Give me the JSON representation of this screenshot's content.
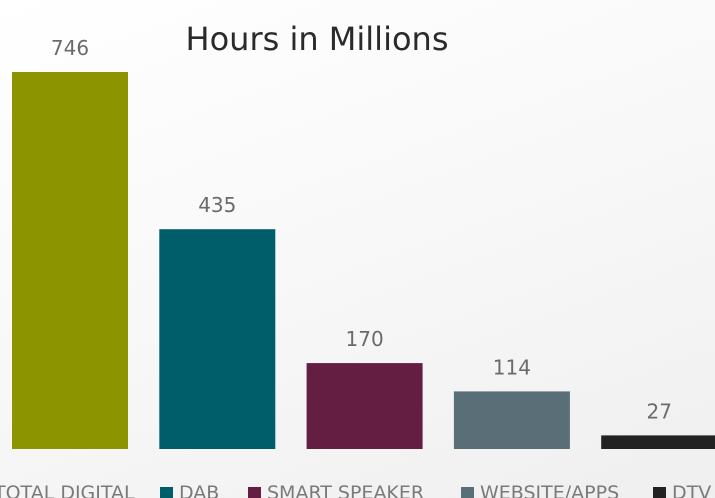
{
  "chart_data": {
    "type": "bar",
    "title": "Hours in Millions",
    "xlabel": "",
    "ylabel": "",
    "ylim": [
      0,
      746
    ],
    "grid": false,
    "legend_placement": "bottom",
    "categories": [
      "TOTAL DIGITAL",
      "DAB",
      "SMART SPEAKER",
      "WEBSITE/APPS",
      "DTV"
    ],
    "values": [
      746,
      435,
      170,
      114,
      27
    ],
    "data_labels": [
      "746",
      "435",
      "170",
      "114",
      "27"
    ],
    "colors": [
      "#8c9400",
      "#005e6b",
      "#631e42",
      "#5a6e78",
      "#222222"
    ]
  }
}
